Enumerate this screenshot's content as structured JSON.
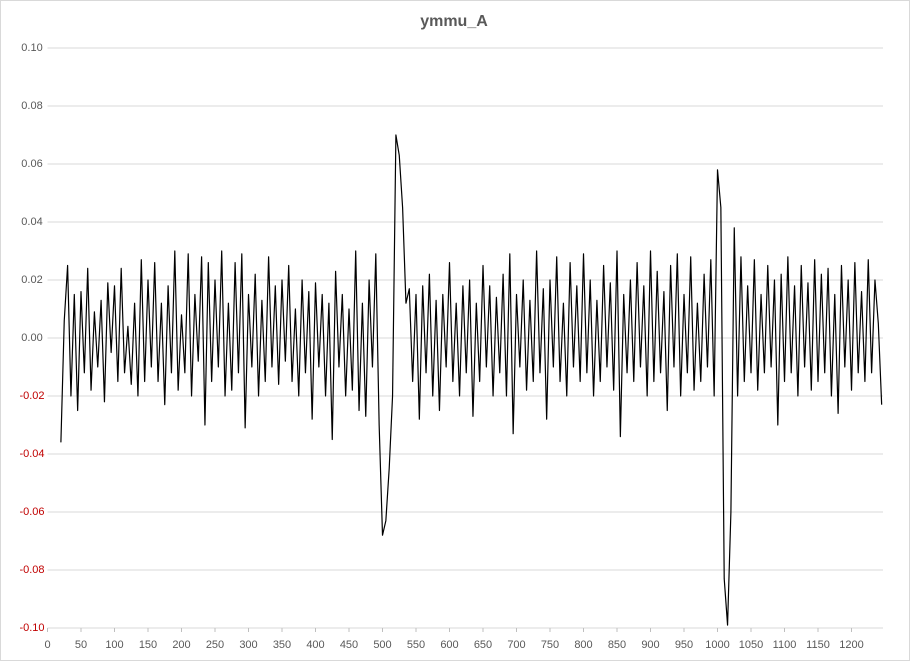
{
  "chart_data": {
    "type": "line",
    "title": "ymmu_A",
    "x": [
      20,
      25,
      30,
      35,
      40,
      45,
      50,
      55,
      60,
      65,
      70,
      75,
      80,
      85,
      90,
      95,
      100,
      105,
      110,
      115,
      120,
      125,
      130,
      135,
      140,
      145,
      150,
      155,
      160,
      165,
      170,
      175,
      180,
      185,
      190,
      195,
      200,
      205,
      210,
      215,
      220,
      225,
      230,
      235,
      240,
      245,
      250,
      255,
      260,
      265,
      270,
      275,
      280,
      285,
      290,
      295,
      300,
      305,
      310,
      315,
      320,
      325,
      330,
      335,
      340,
      345,
      350,
      355,
      360,
      365,
      370,
      375,
      380,
      385,
      390,
      395,
      400,
      405,
      410,
      415,
      420,
      425,
      430,
      435,
      440,
      445,
      450,
      455,
      460,
      465,
      470,
      475,
      480,
      485,
      490,
      495,
      500,
      505,
      510,
      515,
      520,
      525,
      530,
      535,
      540,
      545,
      550,
      555,
      560,
      565,
      570,
      575,
      580,
      585,
      590,
      595,
      600,
      605,
      610,
      615,
      620,
      625,
      630,
      635,
      640,
      645,
      650,
      655,
      660,
      665,
      670,
      675,
      680,
      685,
      690,
      695,
      700,
      705,
      710,
      715,
      720,
      725,
      730,
      735,
      740,
      745,
      750,
      755,
      760,
      765,
      770,
      775,
      780,
      785,
      790,
      795,
      800,
      805,
      810,
      815,
      820,
      825,
      830,
      835,
      840,
      845,
      850,
      855,
      860,
      865,
      870,
      875,
      880,
      885,
      890,
      895,
      900,
      905,
      910,
      915,
      920,
      925,
      930,
      935,
      940,
      945,
      950,
      955,
      960,
      965,
      970,
      975,
      980,
      985,
      990,
      995,
      1000,
      1005,
      1010,
      1015,
      1020,
      1025,
      1030,
      1035,
      1040,
      1045,
      1050,
      1055,
      1060,
      1065,
      1070,
      1075,
      1080,
      1085,
      1090,
      1095,
      1100,
      1105,
      1110,
      1115,
      1120,
      1125,
      1130,
      1135,
      1140,
      1145,
      1150,
      1155,
      1160,
      1165,
      1170,
      1175,
      1180,
      1185,
      1190,
      1195,
      1200,
      1205,
      1210,
      1215,
      1220,
      1225,
      1230,
      1235,
      1240,
      1245
    ],
    "series": [
      {
        "name": "ymmu_A",
        "color": "#000000",
        "values": [
          -0.036,
          0.006,
          0.025,
          -0.02,
          0.015,
          -0.025,
          0.016,
          -0.012,
          0.024,
          -0.018,
          0.009,
          -0.01,
          0.013,
          -0.022,
          0.019,
          -0.005,
          0.018,
          -0.015,
          0.024,
          -0.012,
          0.004,
          -0.016,
          0.012,
          -0.02,
          0.027,
          -0.015,
          0.02,
          -0.01,
          0.026,
          -0.015,
          0.012,
          -0.023,
          0.018,
          -0.012,
          0.03,
          -0.018,
          0.008,
          -0.012,
          0.029,
          -0.02,
          0.015,
          -0.008,
          0.028,
          -0.03,
          0.026,
          -0.015,
          0.02,
          -0.01,
          0.03,
          -0.02,
          0.012,
          -0.018,
          0.026,
          -0.012,
          0.029,
          -0.031,
          0.015,
          -0.01,
          0.022,
          -0.02,
          0.013,
          -0.015,
          0.028,
          -0.01,
          0.018,
          -0.016,
          0.02,
          -0.008,
          0.025,
          -0.015,
          0.01,
          -0.02,
          0.02,
          -0.012,
          0.016,
          -0.028,
          0.019,
          -0.01,
          0.015,
          -0.02,
          0.012,
          -0.035,
          0.023,
          -0.01,
          0.015,
          -0.02,
          0.01,
          -0.018,
          0.03,
          -0.025,
          0.012,
          -0.027,
          0.02,
          -0.01,
          0.029,
          -0.03,
          -0.068,
          -0.063,
          -0.045,
          -0.02,
          0.07,
          0.063,
          0.045,
          0.012,
          0.017,
          -0.015,
          0.015,
          -0.028,
          0.018,
          -0.012,
          0.022,
          -0.02,
          0.013,
          -0.025,
          0.015,
          -0.01,
          0.026,
          -0.015,
          0.012,
          -0.02,
          0.018,
          -0.012,
          0.02,
          -0.027,
          0.012,
          -0.015,
          0.025,
          -0.01,
          0.018,
          -0.02,
          0.014,
          -0.012,
          0.022,
          -0.02,
          0.029,
          -0.033,
          0.015,
          -0.01,
          0.02,
          -0.018,
          0.013,
          -0.015,
          0.03,
          -0.012,
          0.017,
          -0.028,
          0.02,
          -0.01,
          0.028,
          -0.015,
          0.012,
          -0.02,
          0.026,
          -0.01,
          0.018,
          -0.015,
          0.029,
          -0.012,
          0.02,
          -0.02,
          0.013,
          -0.015,
          0.025,
          -0.01,
          0.019,
          -0.018,
          0.03,
          -0.034,
          0.015,
          -0.012,
          0.02,
          -0.015,
          0.026,
          -0.01,
          0.018,
          -0.02,
          0.03,
          -0.015,
          0.023,
          -0.012,
          0.016,
          -0.025,
          0.025,
          -0.01,
          0.029,
          -0.02,
          0.015,
          -0.012,
          0.028,
          -0.018,
          0.012,
          -0.015,
          0.022,
          -0.01,
          0.027,
          -0.02,
          0.058,
          0.045,
          -0.083,
          -0.099,
          -0.06,
          0.038,
          -0.02,
          0.028,
          -0.015,
          0.018,
          -0.012,
          0.027,
          -0.018,
          0.015,
          -0.012,
          0.025,
          -0.01,
          0.02,
          -0.03,
          0.022,
          -0.015,
          0.028,
          -0.012,
          0.018,
          -0.02,
          0.025,
          -0.01,
          0.019,
          -0.018,
          0.027,
          -0.015,
          0.022,
          -0.012,
          0.024,
          -0.02,
          0.015,
          -0.026,
          0.025,
          -0.01,
          0.02,
          -0.018,
          0.026,
          -0.012,
          0.016,
          -0.015,
          0.027,
          -0.012,
          0.02,
          0.005,
          -0.023
        ]
      }
    ],
    "xlim": [
      0,
      1247
    ],
    "xticks": [
      0,
      50,
      100,
      150,
      200,
      250,
      300,
      350,
      400,
      450,
      500,
      550,
      600,
      650,
      700,
      750,
      800,
      850,
      900,
      950,
      1000,
      1050,
      1100,
      1150,
      1200
    ],
    "ylim": [
      -0.1,
      0.1
    ],
    "yticks": [
      {
        "value": -0.1,
        "label": "-0.10"
      },
      {
        "value": -0.08,
        "label": "-0.08"
      },
      {
        "value": -0.06,
        "label": "-0.06"
      },
      {
        "value": -0.04,
        "label": "-0.04"
      },
      {
        "value": -0.02,
        "label": "-0.02"
      },
      {
        "value": 0,
        "label": "0.00"
      },
      {
        "value": 0.02,
        "label": "0.02"
      },
      {
        "value": 0.04,
        "label": "0.04"
      },
      {
        "value": 0.06,
        "label": "0.06"
      },
      {
        "value": 0.08,
        "label": "0.08"
      },
      {
        "value": 0.1,
        "label": "0.10"
      }
    ],
    "grid": true,
    "negative_tick_color": "#c00000"
  }
}
